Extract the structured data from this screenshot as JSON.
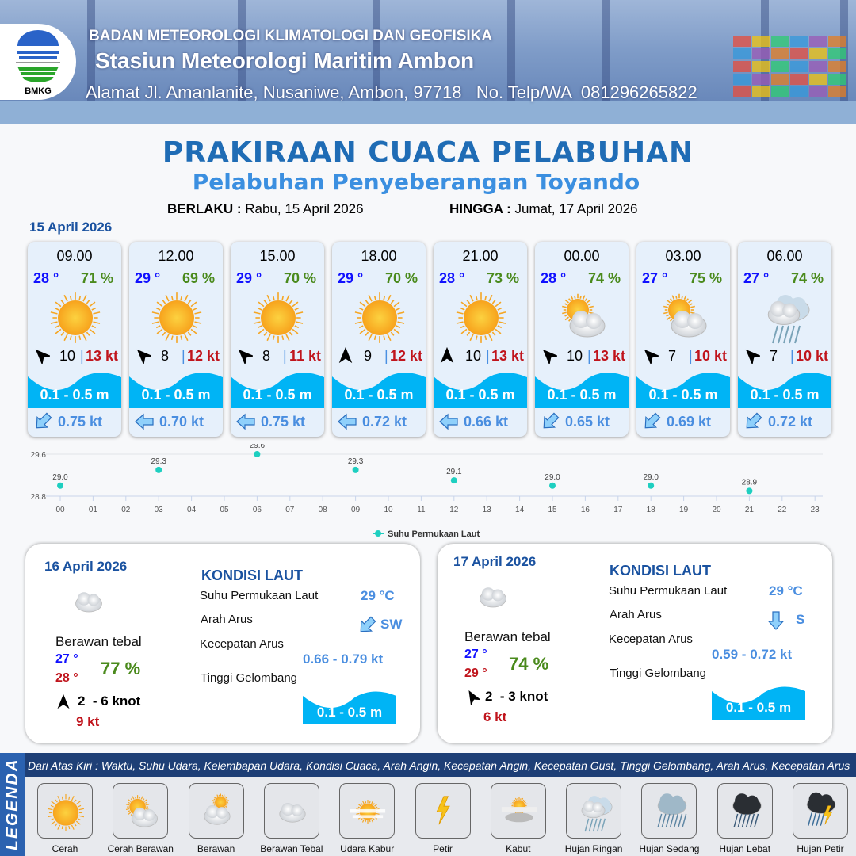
{
  "header": {
    "agency": "BADAN METEOROLOGI KLIMATOLOGI DAN GEOFISIKA",
    "station": "Stasiun Meteorologi Maritim Ambon",
    "address": "Alamat Jl. Amanlanite, Nusaniwe, Ambon, 97718   No. Telp/WA  081296265822",
    "logo_text": "BMKG"
  },
  "title": "PRAKIRAAN CUACA PELABUHAN",
  "subtitle": "Pelabuhan Penyeberangan Toyando",
  "validity": {
    "from_label": "BERLAKU :",
    "from": "Rabu, 15 April 2026",
    "to_label": "HINGGA :",
    "to": "Jumat, 17 April 2026"
  },
  "today": {
    "date": "15 April 2026",
    "cards": [
      {
        "time": "09.00",
        "temp": "28 °",
        "hum": "71 %",
        "icon": "cerah",
        "wind_dir_deg": -45,
        "wind": "10",
        "gust": "13 kt",
        "wave": "0.1 - 0.5 m",
        "current_dir_deg": 225,
        "current": "0.75 kt"
      },
      {
        "time": "12.00",
        "temp": "29 °",
        "hum": "69 %",
        "icon": "cerah",
        "wind_dir_deg": -45,
        "wind": "8",
        "gust": "12 kt",
        "wave": "0.1 - 0.5 m",
        "current_dir_deg": 270,
        "current": "0.70 kt"
      },
      {
        "time": "15.00",
        "temp": "29 °",
        "hum": "70 %",
        "icon": "cerah",
        "wind_dir_deg": -45,
        "wind": "8",
        "gust": "11 kt",
        "wave": "0.1 - 0.5 m",
        "current_dir_deg": 270,
        "current": "0.75 kt"
      },
      {
        "time": "18.00",
        "temp": "29 °",
        "hum": "70 %",
        "icon": "cerah",
        "wind_dir_deg": 0,
        "wind": "9",
        "gust": "12 kt",
        "wave": "0.1 - 0.5 m",
        "current_dir_deg": 270,
        "current": "0.72 kt"
      },
      {
        "time": "21.00",
        "temp": "28 °",
        "hum": "73 %",
        "icon": "cerah",
        "wind_dir_deg": 0,
        "wind": "10",
        "gust": "13 kt",
        "wave": "0.1 - 0.5 m",
        "current_dir_deg": 270,
        "current": "0.66 kt"
      },
      {
        "time": "00.00",
        "temp": "28 °",
        "hum": "74 %",
        "icon": "cerah-berawan",
        "wind_dir_deg": -45,
        "wind": "10",
        "gust": "13 kt",
        "wave": "0.1 - 0.5 m",
        "current_dir_deg": 225,
        "current": "0.65 kt"
      },
      {
        "time": "03.00",
        "temp": "27 °",
        "hum": "75 %",
        "icon": "cerah-berawan",
        "wind_dir_deg": -45,
        "wind": "7",
        "gust": "10 kt",
        "wave": "0.1 - 0.5 m",
        "current_dir_deg": 225,
        "current": "0.69 kt"
      },
      {
        "time": "06.00",
        "temp": "27 °",
        "hum": "74 %",
        "icon": "hujan-ringan",
        "wind_dir_deg": -45,
        "wind": "7",
        "gust": "10 kt",
        "wave": "0.1 - 0.5 m",
        "current_dir_deg": 225,
        "current": "0.72 kt"
      }
    ]
  },
  "chart_data": {
    "type": "scatter",
    "x_ticks": [
      "00",
      "01",
      "02",
      "03",
      "04",
      "05",
      "06",
      "07",
      "08",
      "09",
      "10",
      "11",
      "12",
      "13",
      "14",
      "15",
      "16",
      "17",
      "18",
      "19",
      "20",
      "21",
      "22",
      "23"
    ],
    "y_ticks": [
      "28.8",
      "29.6"
    ],
    "ylim": [
      28.8,
      29.6
    ],
    "series": [
      {
        "name": "Suhu Permukaan Laut",
        "color": "#1ecfc0",
        "x": [
          0,
          3,
          6,
          9,
          12,
          15,
          18,
          21
        ],
        "values": [
          29.0,
          29.3,
          29.6,
          29.3,
          29.1,
          29.0,
          29.0,
          28.9
        ],
        "labels": [
          "29.0",
          "29.3",
          "29.6",
          "29.3",
          "29.1",
          "29.0",
          "29.0",
          "28.9"
        ]
      }
    ],
    "legend": "bottom",
    "grid": "horizontal"
  },
  "days": [
    {
      "date": "16 April 2026",
      "condition": "Berawan tebal",
      "tmin": "27 °",
      "tmax": "28 °",
      "hum": "77 %",
      "wind_dir_deg": 0,
      "wind": "2  - 6 knot",
      "gust": "9 kt",
      "sea_title": "KONDISI LAUT",
      "sst_label": "Suhu Permukaan Laut",
      "sst": "29 °C",
      "dir_label": "Arah Arus",
      "current_dir": "SW",
      "current_dir_deg": 225,
      "speed_label": "Kecepatan Arus",
      "speed": "0.66 - 0.79 kt",
      "wave_label": "Tinggi Gelombang",
      "wave": "0.1 - 0.5 m"
    },
    {
      "date": "17 April 2026",
      "condition": "Berawan tebal",
      "tmin": "27 °",
      "tmax": "29 °",
      "hum": "74 %",
      "wind_dir_deg": -30,
      "wind": "2  - 3 knot",
      "gust": "6 kt",
      "sea_title": "KONDISI LAUT",
      "sst_label": "Suhu Permukaan Laut",
      "sst": "29 °C",
      "dir_label": "Arah Arus",
      "current_dir": "S",
      "current_dir_deg": 180,
      "speed_label": "Kecepatan Arus",
      "speed": "0.59 - 0.72 kt",
      "wave_label": "Tinggi Gelombang",
      "wave": "0.1 - 0.5 m"
    }
  ],
  "legend": {
    "title": "LEGENDA",
    "description": "Dari Atas Kiri : Waktu, Suhu Udara, Kelembapan Udara, Kondisi Cuaca, Arah Angin, Kecepatan Angin, Kecepatan Gust, Tinggi Gelombang, Arah Arus, Kecepatan Arus",
    "items": [
      {
        "label": "Cerah",
        "icon": "cerah"
      },
      {
        "label": "Cerah Berawan",
        "icon": "cerah-berawan"
      },
      {
        "label": "Berawan",
        "icon": "berawan"
      },
      {
        "label": "Berawan Tebal",
        "icon": "berawan-tebal"
      },
      {
        "label": "Udara Kabur",
        "icon": "udara-kabur"
      },
      {
        "label": "Petir",
        "icon": "petir"
      },
      {
        "label": "Kabut",
        "icon": "kabut"
      },
      {
        "label": "Hujan Ringan",
        "icon": "hujan-ringan"
      },
      {
        "label": "Hujan Sedang",
        "icon": "hujan-sedang"
      },
      {
        "label": "Hujan Lebat",
        "icon": "hujan-lebat"
      },
      {
        "label": "Hujan Petir",
        "icon": "hujan-petir"
      }
    ]
  },
  "colors": {
    "title": "#1f6cb5",
    "wave": "#00b4f5",
    "temp": "#1010ff",
    "humidity": "#4a8a1c",
    "gust": "#c0141c",
    "current": "#4a8ee0",
    "legend_bg": "#1e3f76"
  }
}
